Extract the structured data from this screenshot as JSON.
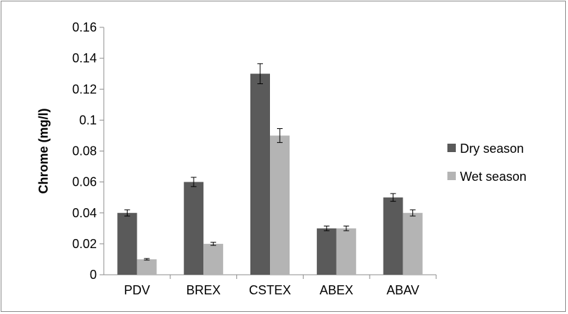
{
  "chart_data": {
    "type": "bar",
    "categories": [
      "PDV",
      "BREX",
      "CSTEX",
      "ABEX",
      "ABAV"
    ],
    "series": [
      {
        "name": "Dry season",
        "values": [
          0.04,
          0.06,
          0.13,
          0.03,
          0.05
        ],
        "errors": [
          0.002,
          0.003,
          0.0065,
          0.0015,
          0.0025
        ],
        "color": "#5a5a5a"
      },
      {
        "name": "Wet season",
        "values": [
          0.01,
          0.02,
          0.09,
          0.03,
          0.04
        ],
        "errors": [
          0.0005,
          0.001,
          0.0045,
          0.0015,
          0.002
        ],
        "color": "#b4b4b4"
      }
    ],
    "ylabel": "Chrome (mg/l)",
    "xlabel": "",
    "ylim": [
      0,
      0.16
    ],
    "yticks": [
      "0",
      "0.02",
      "0.04",
      "0.06",
      "0.08",
      "0.1",
      "0.12",
      "0.14",
      "0.16"
    ],
    "grid": false,
    "legend_position": "right"
  }
}
